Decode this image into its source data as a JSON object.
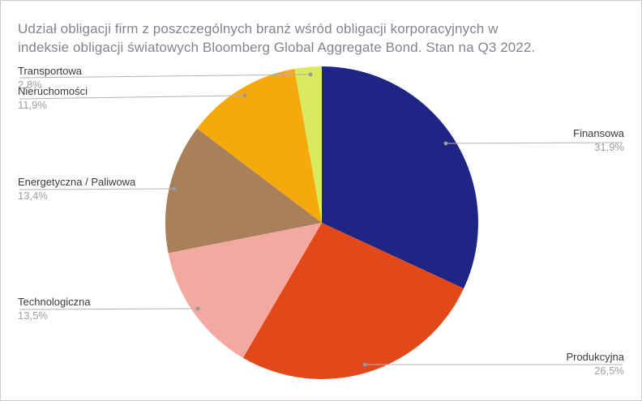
{
  "page": {
    "title_line1": "Udział obligacji firm z poszczególnych branż wśród obligacji korporacyjnych w",
    "title_line2": "indeksie obligacji światowych Bloomberg Global Aggregate Bond. Stan na Q3 2022."
  },
  "chart_data": {
    "type": "pie",
    "title": "Udział obligacji firm z poszczególnych branż wśród obligacji korporacyjnych w indeksie obligacji światowych Bloomberg Global Aggregate Bond. Stan na Q3 2022.",
    "start_angle_deg": 0,
    "direction": "clockwise",
    "legend_position": "callout-labels",
    "slices": [
      {
        "key": "finansowa",
        "label": "Finansowa",
        "value": 31.9,
        "display": "31,9%",
        "color": "#1e2584",
        "label_side": "right"
      },
      {
        "key": "produkcyjna",
        "label": "Produkcyjna",
        "value": 26.5,
        "display": "26,5%",
        "color": "#e3481b",
        "label_side": "right"
      },
      {
        "key": "technologiczna",
        "label": "Technologiczna",
        "value": 13.5,
        "display": "13,5%",
        "color": "#f3a8a0",
        "label_side": "left"
      },
      {
        "key": "energetyczna-paliwowa",
        "label": "Energetyczna / Paliwowa",
        "value": 13.4,
        "display": "13,4%",
        "color": "#a8805a",
        "label_side": "left"
      },
      {
        "key": "nieruchomosci",
        "label": "Nieruchomości",
        "value": 11.9,
        "display": "11,9%",
        "color": "#f5a90d",
        "label_side": "left"
      },
      {
        "key": "transportowa",
        "label": "Transportowa",
        "value": 2.8,
        "display": "2,8%",
        "color": "#d9e960",
        "label_side": "left"
      }
    ],
    "colors": {
      "title_text": "#84848e",
      "label_text": "#3a3a40",
      "value_text": "#9d9da3",
      "leader_line": "#b2b2b6",
      "leader_dot": "#98989e",
      "background": "#ffffff",
      "border": "#c9c9cf"
    }
  }
}
